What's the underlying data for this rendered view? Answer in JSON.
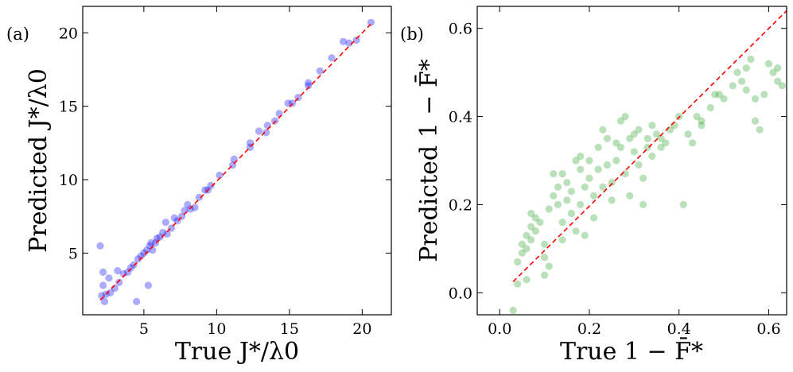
{
  "chart_data": [
    {
      "type": "scatter",
      "panel_label": "(a)",
      "xlabel": "True J*/λ0",
      "ylabel": "Predicted J*/λ0",
      "xlim": [
        0.8,
        22.0
      ],
      "ylim": [
        0.8,
        21.8
      ],
      "xticks": [
        5,
        10,
        15,
        20
      ],
      "yticks": [
        5,
        10,
        15,
        20
      ],
      "xtick_labels": [
        "5",
        "10",
        "15",
        "20"
      ],
      "ytick_labels": [
        "5",
        "10",
        "15",
        "20"
      ],
      "marker_color": "#0000ff",
      "reference_line": {
        "style": "dashed",
        "color": "#ff0000",
        "from": [
          2.0,
          1.8
        ],
        "to": [
          20.7,
          20.7
        ]
      },
      "points": [
        [
          2.0,
          5.5
        ],
        [
          2.1,
          2.1
        ],
        [
          2.2,
          3.7
        ],
        [
          2.2,
          2.8
        ],
        [
          2.3,
          1.7
        ],
        [
          2.4,
          2.2
        ],
        [
          2.6,
          3.3
        ],
        [
          2.7,
          2.3
        ],
        [
          3.0,
          2.6
        ],
        [
          3.2,
          3.8
        ],
        [
          3.3,
          3.0
        ],
        [
          3.6,
          3.6
        ],
        [
          3.9,
          3.7
        ],
        [
          4.1,
          4.0
        ],
        [
          4.3,
          4.2
        ],
        [
          4.5,
          1.7
        ],
        [
          4.6,
          4.6
        ],
        [
          4.8,
          4.8
        ],
        [
          5.0,
          5.0
        ],
        [
          5.2,
          5.2
        ],
        [
          5.3,
          2.8
        ],
        [
          5.4,
          5.5
        ],
        [
          5.5,
          5.7
        ],
        [
          5.6,
          5.2
        ],
        [
          5.8,
          5.7
        ],
        [
          5.9,
          6.0
        ],
        [
          6.1,
          6.1
        ],
        [
          6.3,
          6.4
        ],
        [
          6.5,
          7.1
        ],
        [
          6.6,
          6.3
        ],
        [
          6.9,
          6.7
        ],
        [
          7.1,
          7.4
        ],
        [
          7.3,
          7.2
        ],
        [
          7.6,
          7.5
        ],
        [
          7.8,
          7.9
        ],
        [
          8.0,
          8.3
        ],
        [
          8.2,
          8.0
        ],
        [
          8.5,
          8.1
        ],
        [
          8.8,
          8.8
        ],
        [
          9.2,
          9.3
        ],
        [
          9.4,
          9.3
        ],
        [
          9.6,
          9.6
        ],
        [
          10.2,
          10.3
        ],
        [
          11.1,
          11.0
        ],
        [
          11.2,
          11.4
        ],
        [
          12.3,
          12.5
        ],
        [
          12.3,
          12.2
        ],
        [
          12.9,
          13.3
        ],
        [
          13.4,
          13.2
        ],
        [
          13.5,
          13.7
        ],
        [
          14.0,
          14.0
        ],
        [
          14.3,
          14.5
        ],
        [
          14.9,
          15.2
        ],
        [
          15.2,
          15.2
        ],
        [
          15.6,
          15.6
        ],
        [
          16.3,
          16.4
        ],
        [
          16.3,
          16.6
        ],
        [
          17.1,
          17.4
        ],
        [
          17.9,
          18.3
        ],
        [
          18.7,
          19.4
        ],
        [
          19.1,
          19.3
        ],
        [
          19.6,
          19.5
        ],
        [
          20.6,
          20.7
        ]
      ]
    },
    {
      "type": "scatter",
      "panel_label": "(b)",
      "xlabel": "True 1 − F̄*",
      "ylabel": "Predicted 1 − F̄*",
      "xlim": [
        -0.05,
        0.64
      ],
      "ylim": [
        -0.05,
        0.65
      ],
      "xticks": [
        0.0,
        0.2,
        0.4,
        0.6
      ],
      "yticks": [
        0.0,
        0.2,
        0.4,
        0.6
      ],
      "xtick_labels": [
        "0.0",
        "0.2",
        "0.4",
        "0.6"
      ],
      "ytick_labels": [
        "0.0",
        "0.2",
        "0.4",
        "0.6"
      ],
      "marker_color": "#2ca02c",
      "reference_line": {
        "style": "dashed",
        "color": "#ff0000",
        "from": [
          0.03,
          0.025
        ],
        "to": [
          0.64,
          0.64
        ]
      },
      "points": [
        [
          0.03,
          -0.04
        ],
        [
          0.04,
          0.02
        ],
        [
          0.04,
          0.07
        ],
        [
          0.05,
          0.09
        ],
        [
          0.05,
          0.11
        ],
        [
          0.06,
          0.03
        ],
        [
          0.06,
          0.1
        ],
        [
          0.06,
          0.13
        ],
        [
          0.07,
          0.12
        ],
        [
          0.07,
          0.15
        ],
        [
          0.07,
          0.18
        ],
        [
          0.08,
          0.14
        ],
        [
          0.08,
          0.17
        ],
        [
          0.09,
          0.16
        ],
        [
          0.1,
          0.08
        ],
        [
          0.1,
          0.04
        ],
        [
          0.11,
          0.06
        ],
        [
          0.1,
          0.11
        ],
        [
          0.11,
          0.19
        ],
        [
          0.12,
          0.22
        ],
        [
          0.12,
          0.27
        ],
        [
          0.13,
          0.24
        ],
        [
          0.13,
          0.2
        ],
        [
          0.14,
          0.16
        ],
        [
          0.14,
          0.27
        ],
        [
          0.14,
          0.12
        ],
        [
          0.15,
          0.21
        ],
        [
          0.15,
          0.25
        ],
        [
          0.16,
          0.18
        ],
        [
          0.16,
          0.23
        ],
        [
          0.17,
          0.3
        ],
        [
          0.17,
          0.14
        ],
        [
          0.18,
          0.28
        ],
        [
          0.18,
          0.31
        ],
        [
          0.18,
          0.2
        ],
        [
          0.19,
          0.24
        ],
        [
          0.19,
          0.13
        ],
        [
          0.2,
          0.3
        ],
        [
          0.2,
          0.26
        ],
        [
          0.21,
          0.22
        ],
        [
          0.21,
          0.17
        ],
        [
          0.22,
          0.33
        ],
        [
          0.22,
          0.28
        ],
        [
          0.23,
          0.37
        ],
        [
          0.23,
          0.24
        ],
        [
          0.24,
          0.35
        ],
        [
          0.24,
          0.29
        ],
        [
          0.25,
          0.25
        ],
        [
          0.25,
          0.21
        ],
        [
          0.26,
          0.34
        ],
        [
          0.26,
          0.3
        ],
        [
          0.27,
          0.39
        ],
        [
          0.27,
          0.33
        ],
        [
          0.28,
          0.4
        ],
        [
          0.28,
          0.27
        ],
        [
          0.29,
          0.22
        ],
        [
          0.29,
          0.35
        ],
        [
          0.3,
          0.36
        ],
        [
          0.3,
          0.32
        ],
        [
          0.31,
          0.37
        ],
        [
          0.31,
          0.29
        ],
        [
          0.32,
          0.26
        ],
        [
          0.32,
          0.2
        ],
        [
          0.33,
          0.35
        ],
        [
          0.33,
          0.33
        ],
        [
          0.34,
          0.38
        ],
        [
          0.34,
          0.31
        ],
        [
          0.35,
          0.36
        ],
        [
          0.36,
          0.35
        ],
        [
          0.36,
          0.33
        ],
        [
          0.37,
          0.34
        ],
        [
          0.38,
          0.37
        ],
        [
          0.39,
          0.38
        ],
        [
          0.4,
          0.4
        ],
        [
          0.41,
          0.2
        ],
        [
          0.42,
          0.36
        ],
        [
          0.43,
          0.34
        ],
        [
          0.44,
          0.4
        ],
        [
          0.45,
          0.38
        ],
        [
          0.45,
          0.39
        ],
        [
          0.47,
          0.42
        ],
        [
          0.48,
          0.45
        ],
        [
          0.49,
          0.45
        ],
        [
          0.5,
          0.44
        ],
        [
          0.52,
          0.47
        ],
        [
          0.53,
          0.5
        ],
        [
          0.54,
          0.48
        ],
        [
          0.55,
          0.51
        ],
        [
          0.55,
          0.46
        ],
        [
          0.56,
          0.53
        ],
        [
          0.57,
          0.44
        ],
        [
          0.57,
          0.39
        ],
        [
          0.58,
          0.37
        ],
        [
          0.59,
          0.45
        ],
        [
          0.6,
          0.52
        ],
        [
          0.61,
          0.5
        ],
        [
          0.62,
          0.51
        ],
        [
          0.62,
          0.48
        ],
        [
          0.63,
          0.47
        ]
      ]
    }
  ]
}
